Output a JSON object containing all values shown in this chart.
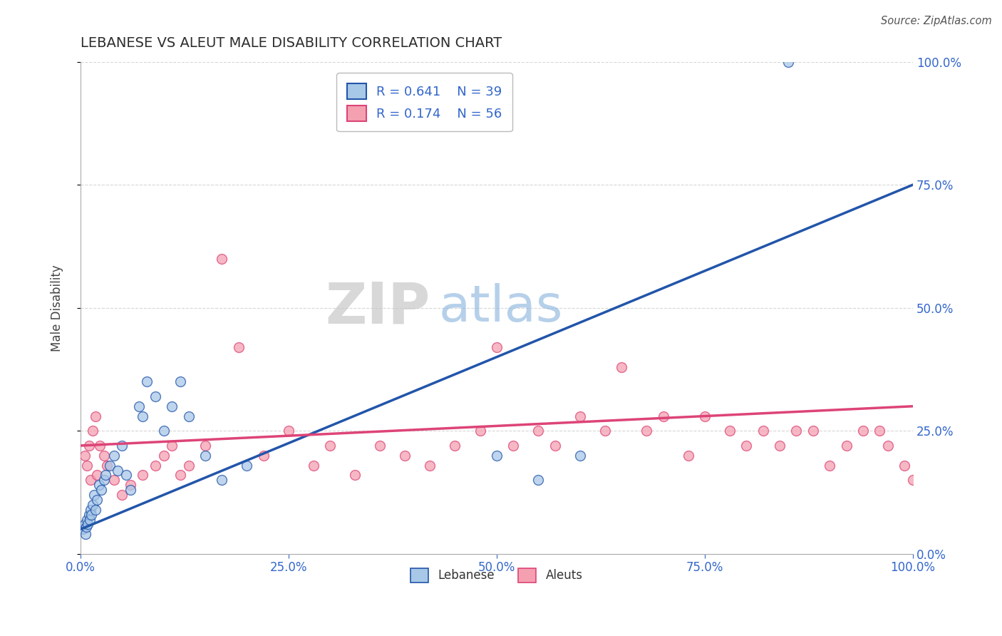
{
  "title": "LEBANESE VS ALEUT MALE DISABILITY CORRELATION CHART",
  "source": "Source: ZipAtlas.com",
  "ylabel": "Male Disability",
  "r_lebanese": 0.641,
  "n_lebanese": 39,
  "r_aleuts": 0.174,
  "n_aleuts": 56,
  "lebanese_color": "#a8c8e8",
  "aleuts_color": "#f4a0b0",
  "line_lebanese_color": "#2255aa",
  "line_aleuts_color": "#dd4477",
  "lebanese_x": [
    0.3,
    0.5,
    0.6,
    0.7,
    0.8,
    0.9,
    1.0,
    1.1,
    1.2,
    1.3,
    1.5,
    1.6,
    1.8,
    2.0,
    2.2,
    2.5,
    2.8,
    3.0,
    3.5,
    4.0,
    4.5,
    5.0,
    5.5,
    6.0,
    7.0,
    7.5,
    8.0,
    9.0,
    10.0,
    11.0,
    12.0,
    13.0,
    15.0,
    17.0,
    20.0,
    50.0,
    55.0,
    60.0,
    85.0
  ],
  "lebanese_y": [
    5.0,
    6.0,
    4.0,
    5.5,
    7.0,
    6.0,
    8.0,
    7.0,
    9.0,
    8.0,
    10.0,
    12.0,
    9.0,
    11.0,
    14.0,
    13.0,
    15.0,
    16.0,
    18.0,
    20.0,
    17.0,
    22.0,
    16.0,
    13.0,
    30.0,
    28.0,
    35.0,
    32.0,
    25.0,
    30.0,
    35.0,
    28.0,
    20.0,
    15.0,
    18.0,
    20.0,
    15.0,
    20.0,
    100.0
  ],
  "aleuts_x": [
    0.5,
    0.8,
    1.0,
    1.2,
    1.5,
    1.8,
    2.0,
    2.3,
    2.8,
    3.2,
    4.0,
    5.0,
    6.0,
    7.5,
    9.0,
    10.0,
    11.0,
    12.0,
    13.0,
    15.0,
    17.0,
    19.0,
    22.0,
    25.0,
    28.0,
    30.0,
    33.0,
    36.0,
    39.0,
    42.0,
    45.0,
    48.0,
    50.0,
    52.0,
    55.0,
    57.0,
    60.0,
    63.0,
    65.0,
    68.0,
    70.0,
    73.0,
    75.0,
    78.0,
    80.0,
    82.0,
    84.0,
    86.0,
    88.0,
    90.0,
    92.0,
    94.0,
    96.0,
    97.0,
    99.0,
    100.0
  ],
  "aleuts_y": [
    20.0,
    18.0,
    22.0,
    15.0,
    25.0,
    28.0,
    16.0,
    22.0,
    20.0,
    18.0,
    15.0,
    12.0,
    14.0,
    16.0,
    18.0,
    20.0,
    22.0,
    16.0,
    18.0,
    22.0,
    60.0,
    42.0,
    20.0,
    25.0,
    18.0,
    22.0,
    16.0,
    22.0,
    20.0,
    18.0,
    22.0,
    25.0,
    42.0,
    22.0,
    25.0,
    22.0,
    28.0,
    25.0,
    38.0,
    25.0,
    28.0,
    20.0,
    28.0,
    25.0,
    22.0,
    25.0,
    22.0,
    25.0,
    25.0,
    18.0,
    22.0,
    25.0,
    25.0,
    22.0,
    18.0,
    15.0
  ],
  "line_leb_x0": 0,
  "line_leb_y0": 5,
  "line_leb_x1": 100,
  "line_leb_y1": 75,
  "line_ale_x0": 0,
  "line_ale_y0": 22,
  "line_ale_x1": 100,
  "line_ale_y1": 30,
  "xlim": [
    0,
    100
  ],
  "ylim": [
    0,
    100
  ],
  "xticks": [
    0,
    25,
    50,
    75,
    100
  ],
  "yticks": [
    0,
    25,
    50,
    75,
    100
  ],
  "xticklabels": [
    "0.0%",
    "25.0%",
    "50.0%",
    "75.0%",
    "100.0%"
  ],
  "yticklabels": [
    "0.0%",
    "25.0%",
    "50.0%",
    "75.0%",
    "100.0%"
  ],
  "background_color": "#ffffff",
  "title_color": "#2d2d2d",
  "tick_color": "#3366cc",
  "axis_label_color": "#444444",
  "grid_color": "#cccccc"
}
